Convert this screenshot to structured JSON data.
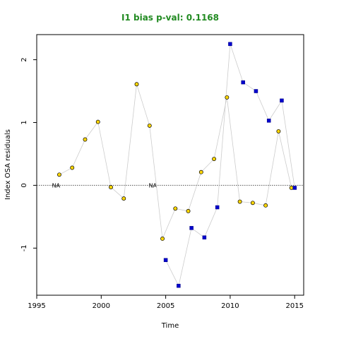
{
  "chart_data": {
    "type": "scatter",
    "title": "I1 bias p-val: 0.1168",
    "title_color": "#228B22",
    "xlabel": "Time",
    "ylabel": "Index OSA residuals",
    "xlim": [
      1995,
      2015.7
    ],
    "ylim": [
      -1.75,
      2.4
    ],
    "xticks": [
      1995,
      2000,
      2005,
      2010,
      2015
    ],
    "yticks": [
      -1,
      0,
      1,
      2
    ],
    "reference_line": {
      "y": 0,
      "style": "dotted",
      "color": "#555555"
    },
    "na_markers": [
      {
        "x": 1996.5,
        "y": 0,
        "label": "NA"
      },
      {
        "x": 2004.0,
        "y": 0,
        "label": "NA"
      }
    ],
    "connector_color": "#cccccc",
    "series": [
      {
        "marker": "circle",
        "fill": "#FFD700",
        "stroke": "#000000",
        "x": [
          1996.75,
          1997.75,
          1998.75,
          1999.75,
          2000.75,
          2001.75,
          2002.75,
          2003.75,
          2004.75,
          2005.75,
          2006.75,
          2007.75,
          2008.75,
          2009.75,
          2010.75,
          2011.75,
          2012.75,
          2013.75,
          2014.75
        ],
        "y": [
          0.17,
          0.28,
          0.73,
          1.01,
          -0.03,
          -0.21,
          1.61,
          0.95,
          -0.85,
          -0.37,
          -0.41,
          0.21,
          0.42,
          1.4,
          -0.26,
          -0.28,
          -0.32,
          0.86,
          -0.04
        ]
      },
      {
        "marker": "square",
        "fill": "#0000CD",
        "stroke": "#000080",
        "x": [
          2005,
          2006,
          2007,
          2008,
          2009,
          2010,
          2011,
          2012,
          2013,
          2014,
          2015
        ],
        "y": [
          -1.19,
          -1.6,
          -0.68,
          -0.83,
          -0.35,
          2.25,
          1.64,
          1.5,
          1.03,
          1.35,
          -0.04
        ]
      }
    ]
  }
}
